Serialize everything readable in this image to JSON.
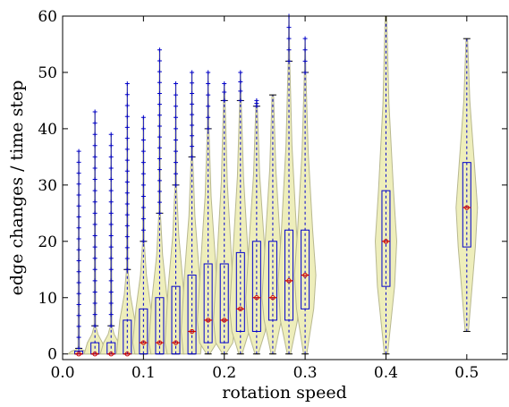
{
  "chart_data": {
    "type": "box",
    "title": "",
    "xlabel": "rotation speed",
    "ylabel": "edge changes / time step",
    "xlim": [
      0.0,
      0.55
    ],
    "ylim": [
      -1,
      60
    ],
    "xticks": [
      "0.0",
      "0.1",
      "0.2",
      "0.3",
      "0.4",
      "0.5"
    ],
    "yticks": [
      "0",
      "10",
      "20",
      "30",
      "40",
      "50",
      "60"
    ],
    "grid": false,
    "legend": "none",
    "colors": {
      "violin_fill": "#eeeebb",
      "violin_edge": "#b8b890",
      "box": "#0000cc",
      "median": "#cc0000",
      "mean_marker": "#cc0000",
      "whisker": "#000000",
      "flier": "#0000cc",
      "whisker_dash": "#0000cc"
    },
    "series": [
      {
        "x": 0.02,
        "whislo": 0,
        "q1": 0,
        "med": 0,
        "q3": 0.5,
        "whishi": 1,
        "max": 36
      },
      {
        "x": 0.04,
        "whislo": 0,
        "q1": 0,
        "med": 0,
        "q3": 2,
        "whishi": 5,
        "max": 43
      },
      {
        "x": 0.06,
        "whislo": 0,
        "q1": 0,
        "med": 0,
        "q3": 2,
        "whishi": 5,
        "max": 39
      },
      {
        "x": 0.08,
        "whislo": 0,
        "q1": 0,
        "med": 0,
        "q3": 6,
        "whishi": 15,
        "max": 48
      },
      {
        "x": 0.1,
        "whislo": 0,
        "q1": 0,
        "med": 2,
        "q3": 8,
        "whishi": 20,
        "max": 42
      },
      {
        "x": 0.12,
        "whislo": 0,
        "q1": 0,
        "med": 2,
        "q3": 10,
        "whishi": 25,
        "max": 54
      },
      {
        "x": 0.14,
        "whislo": 0,
        "q1": 0,
        "med": 2,
        "q3": 12,
        "whishi": 30,
        "max": 48
      },
      {
        "x": 0.16,
        "whislo": 0,
        "q1": 0,
        "med": 4,
        "q3": 14,
        "whishi": 35,
        "max": 50
      },
      {
        "x": 0.18,
        "whislo": 0,
        "q1": 2,
        "med": 6,
        "q3": 16,
        "whishi": 40,
        "max": 50
      },
      {
        "x": 0.2,
        "whislo": 0,
        "q1": 2,
        "med": 6,
        "q3": 16,
        "whishi": 45,
        "max": 48
      },
      {
        "x": 0.22,
        "whislo": 0,
        "q1": 4,
        "med": 8,
        "q3": 18,
        "whishi": 45,
        "max": 50
      },
      {
        "x": 0.24,
        "whislo": 0,
        "q1": 4,
        "med": 10,
        "q3": 20,
        "whishi": 44,
        "max": 45
      },
      {
        "x": 0.26,
        "whislo": 0,
        "q1": 6,
        "med": 10,
        "q3": 20,
        "whishi": 46,
        "max": 46
      },
      {
        "x": 0.28,
        "whislo": 0,
        "q1": 6,
        "med": 13,
        "q3": 22,
        "whishi": 52,
        "max": 60
      },
      {
        "x": 0.3,
        "whislo": 0,
        "q1": 8,
        "med": 14,
        "q3": 22,
        "whishi": 50,
        "max": 56
      },
      {
        "x": 0.4,
        "whislo": 0,
        "q1": 12,
        "med": 20,
        "q3": 29,
        "whishi": 60,
        "max": 60
      },
      {
        "x": 0.5,
        "whislo": 4,
        "q1": 19,
        "med": 26,
        "q3": 34,
        "whishi": 56,
        "max": 56
      }
    ]
  }
}
